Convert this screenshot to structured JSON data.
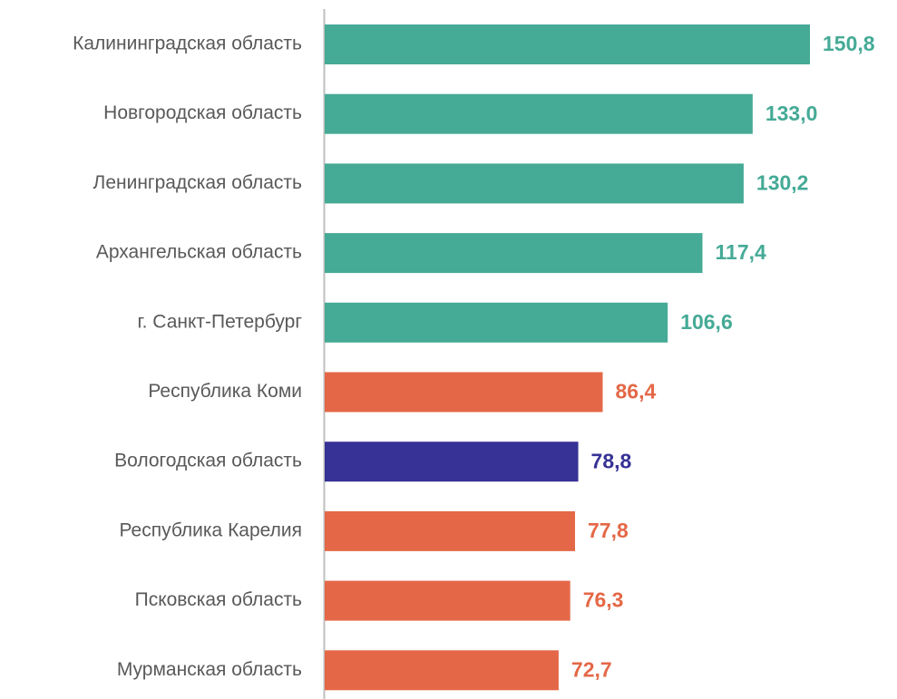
{
  "chart_data": {
    "type": "hbar",
    "categories": [
      "Калининградская область",
      "Новгородская область",
      "Ленинградская область",
      "Архангельская область",
      "г. Санкт-Петербург",
      "Республика Коми",
      "Вологодская область",
      "Республика Карелия",
      "Псковская область",
      "Мурманская область"
    ],
    "values": [
      150.8,
      133.0,
      130.2,
      117.4,
      106.6,
      86.4,
      78.8,
      77.8,
      76.3,
      72.7
    ],
    "value_labels": [
      "150,8",
      "133,0",
      "130,2",
      "117,4",
      "106,6",
      "86,4",
      "78,8",
      "77,8",
      "76,3",
      "72,7"
    ],
    "colors": [
      "#45aa96",
      "#45aa96",
      "#45aa96",
      "#45aa96",
      "#45aa96",
      "#e46847",
      "#373296",
      "#e46847",
      "#e46847",
      "#e46847"
    ]
  }
}
